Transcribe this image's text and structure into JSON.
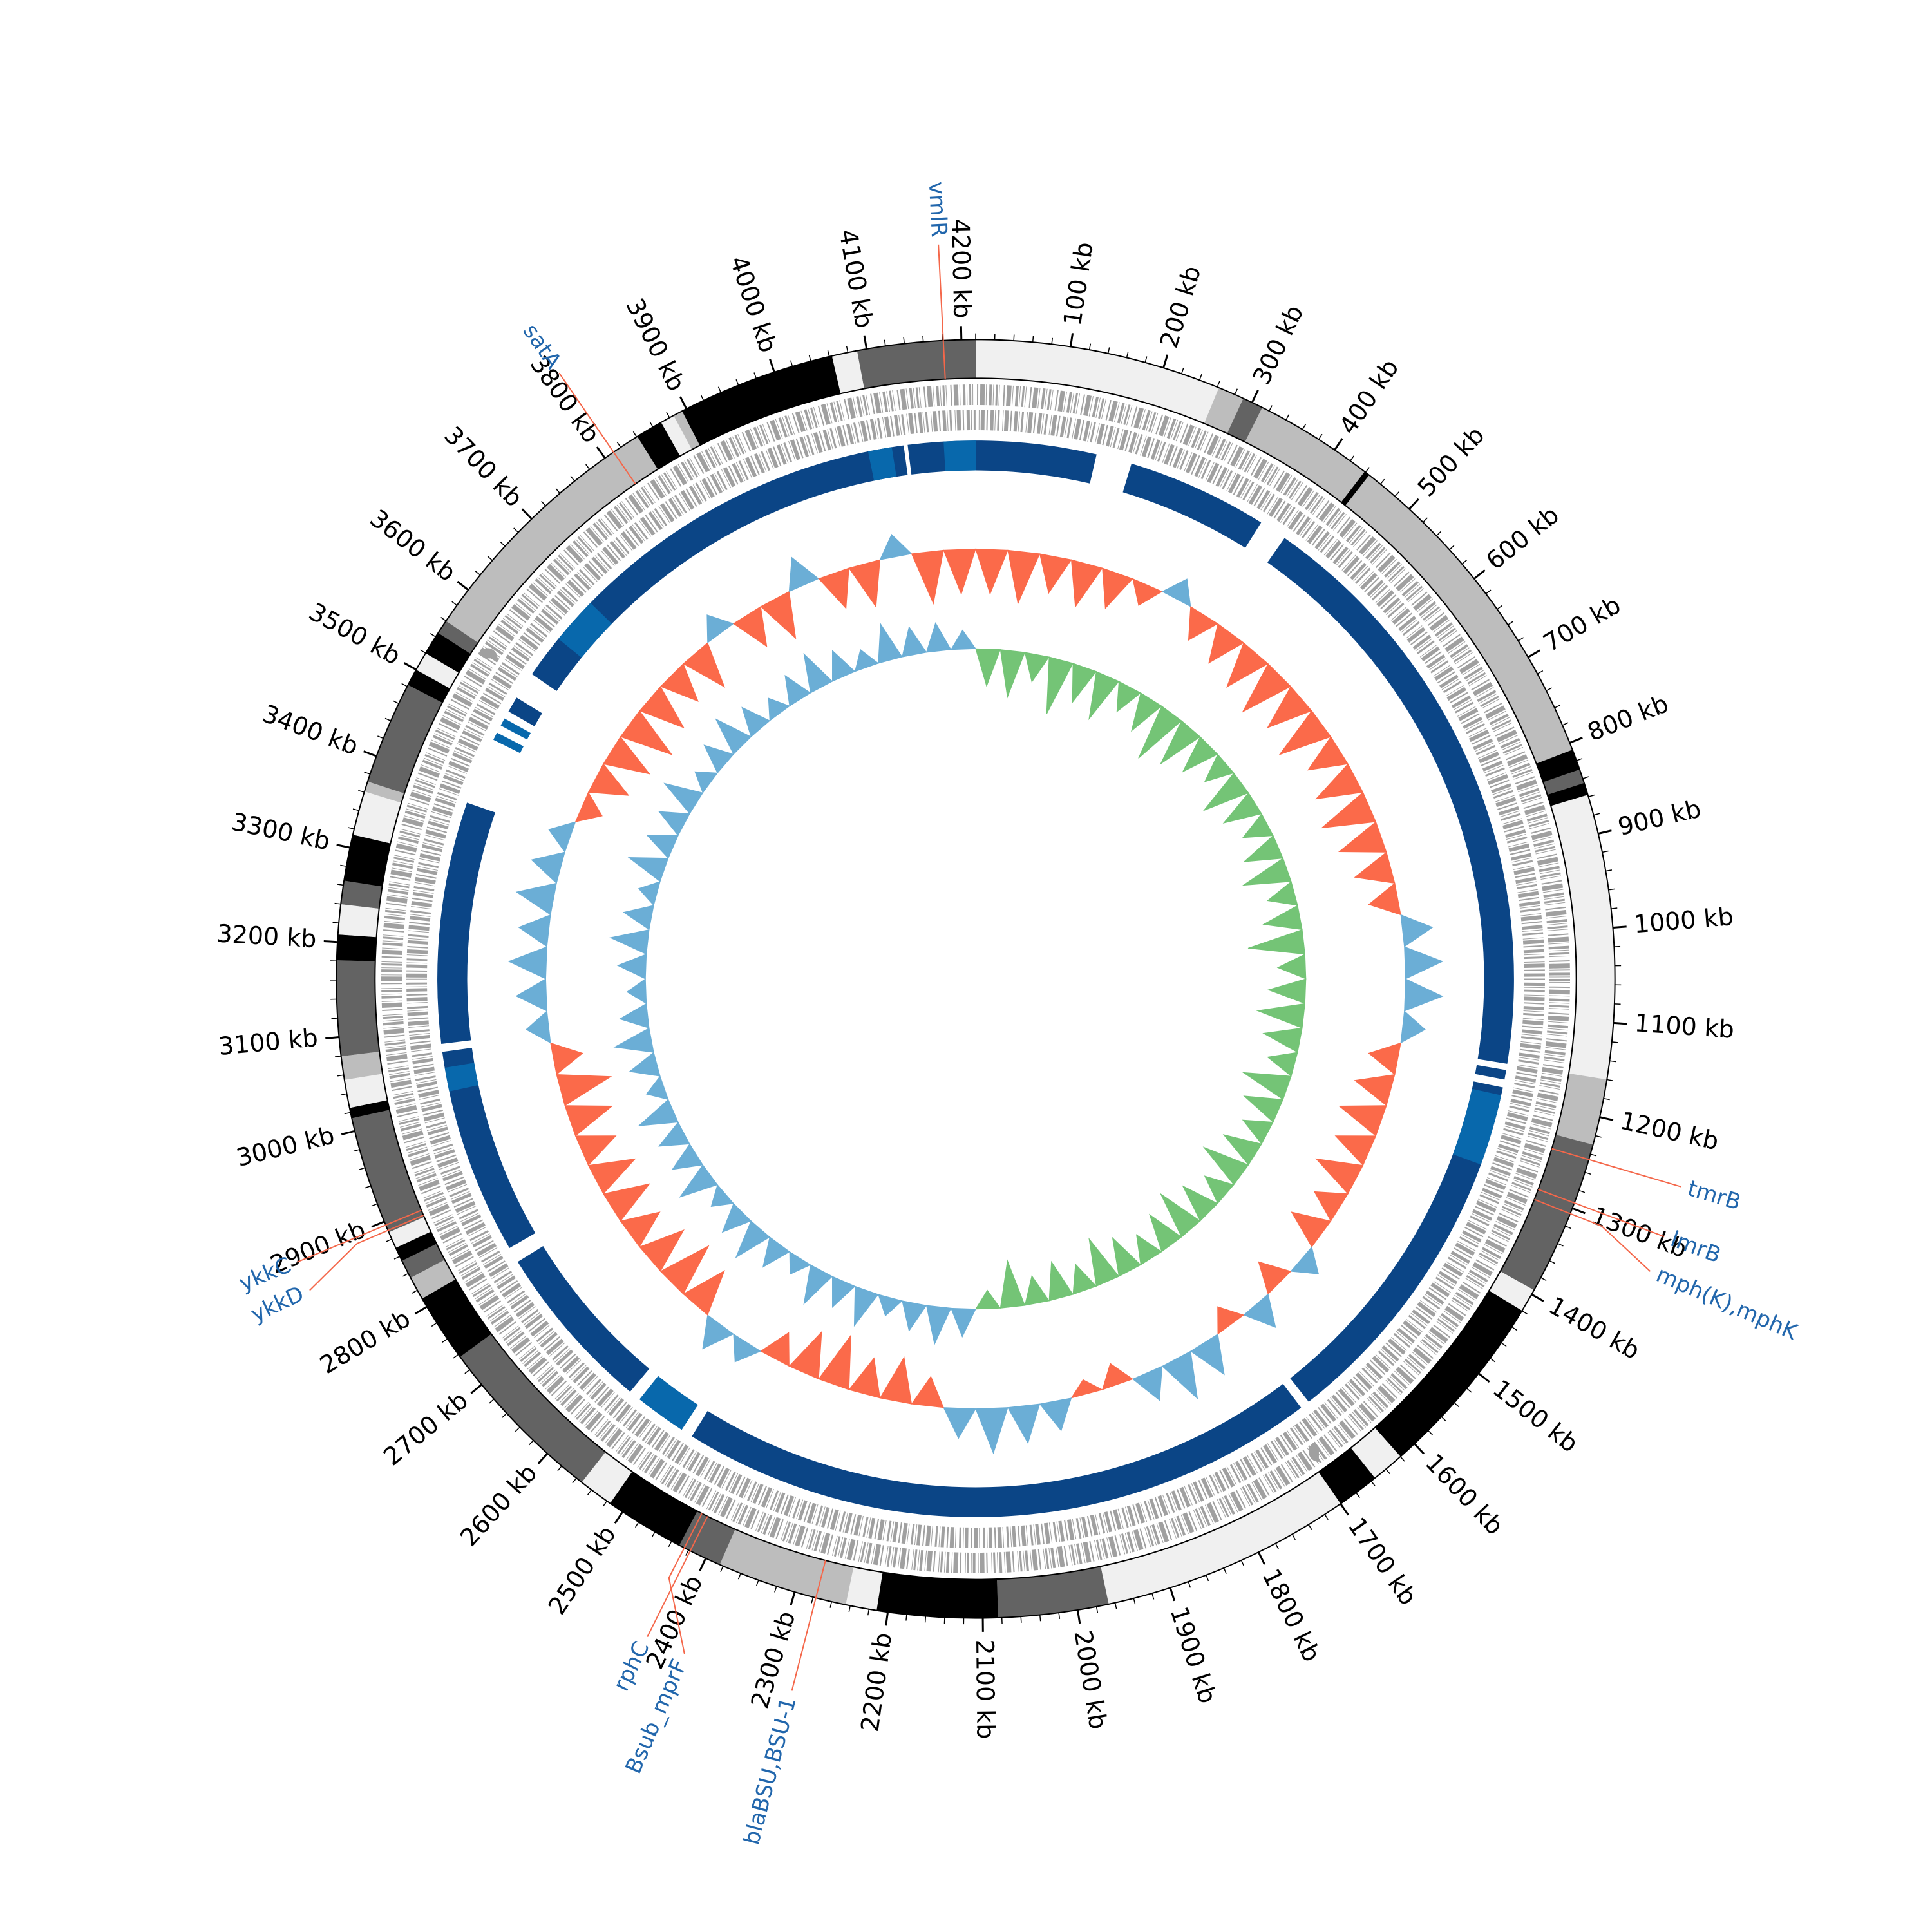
{
  "chart_data": {
    "type": "circos",
    "xlim": [
      0,
      4215
    ],
    "xticks": [
      {
        "value": 100,
        "label": "100 kb"
      },
      {
        "value": 200,
        "label": "200 kb"
      },
      {
        "value": 300,
        "label": "300 kb"
      },
      {
        "value": 400,
        "label": "400 kb"
      },
      {
        "value": 500,
        "label": "500 kb"
      },
      {
        "value": 600,
        "label": "600 kb"
      },
      {
        "value": 700,
        "label": "700 kb"
      },
      {
        "value": 800,
        "label": "800 kb"
      },
      {
        "value": 900,
        "label": "900 kb"
      },
      {
        "value": 1000,
        "label": "1000 kb"
      },
      {
        "value": 1100,
        "label": "1100 kb"
      },
      {
        "value": 1200,
        "label": "1200 kb"
      },
      {
        "value": 1300,
        "label": "1300 kb"
      },
      {
        "value": 1400,
        "label": "1400 kb"
      },
      {
        "value": 1500,
        "label": "1500 kb"
      },
      {
        "value": 1600,
        "label": "1600 kb"
      },
      {
        "value": 1700,
        "label": "1700 kb"
      },
      {
        "value": 1800,
        "label": "1800 kb"
      },
      {
        "value": 1900,
        "label": "1900 kb"
      },
      {
        "value": 2000,
        "label": "2000 kb"
      },
      {
        "value": 2100,
        "label": "2100 kb"
      },
      {
        "value": 2200,
        "label": "2200 kb"
      },
      {
        "value": 2300,
        "label": "2300 kb"
      },
      {
        "value": 2400,
        "label": "2400 kb"
      },
      {
        "value": 2500,
        "label": "2500 kb"
      },
      {
        "value": 2600,
        "label": "2600 kb"
      },
      {
        "value": 2700,
        "label": "2700 kb"
      },
      {
        "value": 2800,
        "label": "2800 kb"
      },
      {
        "value": 2900,
        "label": "2900 kb"
      },
      {
        "value": 3000,
        "label": "3000 kb"
      },
      {
        "value": 3100,
        "label": "3100 kb"
      },
      {
        "value": 3200,
        "label": "3200 kb"
      },
      {
        "value": 3300,
        "label": "3300 kb"
      },
      {
        "value": 3400,
        "label": "3400 kb"
      },
      {
        "value": 3500,
        "label": "3500 kb"
      },
      {
        "value": 3600,
        "label": "3600 kb"
      },
      {
        "value": 3700,
        "label": "3700 kb"
      },
      {
        "value": 3800,
        "label": "3800 kb"
      },
      {
        "value": 3900,
        "label": "3900 kb"
      },
      {
        "value": 4000,
        "label": "4000 kb"
      },
      {
        "value": 4100,
        "label": "4100 kb"
      },
      {
        "value": 4200,
        "label": "4200 kb"
      }
    ],
    "contigs": [
      {
        "start": 0,
        "end": 262,
        "color": "#f0f0f0"
      },
      {
        "start": 262,
        "end": 290,
        "color": "#bdbdbd"
      },
      {
        "start": 290,
        "end": 312,
        "color": "#636363"
      },
      {
        "start": 312,
        "end": 439,
        "color": "#bdbdbd"
      },
      {
        "start": 439,
        "end": 445,
        "color": "#000000"
      },
      {
        "start": 445,
        "end": 808,
        "color": "#bdbdbd"
      },
      {
        "start": 808,
        "end": 830,
        "color": "#000000"
      },
      {
        "start": 830,
        "end": 845,
        "color": "#636363"
      },
      {
        "start": 845,
        "end": 858,
        "color": "#000000"
      },
      {
        "start": 858,
        "end": 1160,
        "color": "#f0f0f0"
      },
      {
        "start": 1160,
        "end": 1230,
        "color": "#bdbdbd"
      },
      {
        "start": 1230,
        "end": 1395,
        "color": "#636363"
      },
      {
        "start": 1395,
        "end": 1420,
        "color": "#f0f0f0"
      },
      {
        "start": 1420,
        "end": 1620,
        "color": "#000000"
      },
      {
        "start": 1620,
        "end": 1655,
        "color": "#f0f0f0"
      },
      {
        "start": 1655,
        "end": 1700,
        "color": "#000000"
      },
      {
        "start": 1700,
        "end": 1967,
        "color": "#f0f0f0"
      },
      {
        "start": 1967,
        "end": 2084,
        "color": "#636363"
      },
      {
        "start": 2084,
        "end": 2212,
        "color": "#000000"
      },
      {
        "start": 2212,
        "end": 2245,
        "color": "#f0f0f0"
      },
      {
        "start": 2245,
        "end": 2384,
        "color": "#bdbdbd"
      },
      {
        "start": 2384,
        "end": 2431,
        "color": "#636363"
      },
      {
        "start": 2431,
        "end": 2516,
        "color": "#000000"
      },
      {
        "start": 2516,
        "end": 2553,
        "color": "#f0f0f0"
      },
      {
        "start": 2553,
        "end": 2737,
        "color": "#636363"
      },
      {
        "start": 2737,
        "end": 2810,
        "color": "#000000"
      },
      {
        "start": 2810,
        "end": 2835,
        "color": "#bdbdbd"
      },
      {
        "start": 2835,
        "end": 2855,
        "color": "#636363"
      },
      {
        "start": 2855,
        "end": 2870,
        "color": "#000000"
      },
      {
        "start": 2870,
        "end": 2888,
        "color": "#f0f0f0"
      },
      {
        "start": 2888,
        "end": 3014,
        "color": "#636363"
      },
      {
        "start": 3014,
        "end": 3025,
        "color": "#000000"
      },
      {
        "start": 3025,
        "end": 3055,
        "color": "#f0f0f0"
      },
      {
        "start": 3055,
        "end": 3080,
        "color": "#bdbdbd"
      },
      {
        "start": 3080,
        "end": 3181,
        "color": "#636363"
      },
      {
        "start": 3181,
        "end": 3208,
        "color": "#000000"
      },
      {
        "start": 3208,
        "end": 3240,
        "color": "#f0f0f0"
      },
      {
        "start": 3240,
        "end": 3265,
        "color": "#636363"
      },
      {
        "start": 3265,
        "end": 3314,
        "color": "#000000"
      },
      {
        "start": 3314,
        "end": 3361,
        "color": "#f0f0f0"
      },
      {
        "start": 3361,
        "end": 3372,
        "color": "#bdbdbd"
      },
      {
        "start": 3372,
        "end": 3482,
        "color": "#636363"
      },
      {
        "start": 3482,
        "end": 3500,
        "color": "#000000"
      },
      {
        "start": 3500,
        "end": 3520,
        "color": "#f0f0f0"
      },
      {
        "start": 3520,
        "end": 3545,
        "color": "#000000"
      },
      {
        "start": 3545,
        "end": 3560,
        "color": "#636363"
      },
      {
        "start": 3560,
        "end": 3841,
        "color": "#bdbdbd"
      },
      {
        "start": 3841,
        "end": 3870,
        "color": "#000000"
      },
      {
        "start": 3870,
        "end": 3885,
        "color": "#f0f0f0"
      },
      {
        "start": 3885,
        "end": 3895,
        "color": "#bdbdbd"
      },
      {
        "start": 3895,
        "end": 4063,
        "color": "#000000"
      },
      {
        "start": 4063,
        "end": 4090,
        "color": "#f0f0f0"
      },
      {
        "start": 4090,
        "end": 4215,
        "color": "#636363"
      }
    ],
    "hits": [
      {
        "start": 4130,
        "end": 4215,
        "color": "#0b4586"
      },
      {
        "start": 0,
        "end": 152,
        "color": "#0b4586"
      },
      {
        "start": 197,
        "end": 375,
        "color": "#0b4586"
      },
      {
        "start": 410,
        "end": 1160,
        "color": "#0b4586"
      },
      {
        "start": 1168,
        "end": 1180,
        "color": "#0b4586"
      },
      {
        "start": 1190,
        "end": 1660,
        "color": "#0b4586"
      },
      {
        "start": 1672,
        "end": 2480,
        "color": "#0b4586"
      },
      {
        "start": 2495,
        "end": 2560,
        "color": "#0868ac"
      },
      {
        "start": 2575,
        "end": 2790,
        "color": "#0b4586"
      },
      {
        "start": 2810,
        "end": 3070,
        "color": "#0b4586"
      },
      {
        "start": 3080,
        "end": 3385,
        "color": "#0b4586"
      },
      {
        "start": 3470,
        "end": 3480,
        "color": "#0868ac"
      },
      {
        "start": 3490,
        "end": 3500,
        "color": "#0868ac"
      },
      {
        "start": 3510,
        "end": 3530,
        "color": "#0b4586"
      },
      {
        "start": 3565,
        "end": 4125,
        "color": "#0b4586"
      },
      {
        "start": 1200,
        "end": 1290,
        "color": "#0868ac"
      },
      {
        "start": 3620,
        "end": 3680,
        "color": "#0868ac"
      },
      {
        "start": 4080,
        "end": 4110,
        "color": "#0868ac"
      },
      {
        "start": 3020,
        "end": 3050,
        "color": "#0868ac"
      },
      {
        "start": 4175,
        "end": 4215,
        "color": "#0868ac"
      }
    ],
    "gc_content": {
      "ylim": [
        -10,
        10
      ],
      "positive_color": "#6baed6",
      "negative_color": "#fb6a4a",
      "values": [
        -6,
        -7,
        -5,
        -6,
        -5,
        -3,
        3,
        -4,
        -5,
        -6,
        -7,
        -6,
        -7,
        -5,
        -6,
        -7,
        -6,
        -5,
        -4,
        4,
        5,
        5,
        3,
        -4,
        -5,
        -6,
        -5,
        -6,
        -4,
        -5,
        3,
        -4,
        4,
        -3,
        5,
        6,
        4,
        -3,
        -2,
        4,
        5,
        6,
        4,
        -4,
        -6,
        -5,
        -7,
        -6,
        -4,
        3,
        4,
        -6,
        -7,
        -6,
        -5,
        -6,
        -6,
        -5,
        -6,
        -7,
        -4,
        3,
        4,
        5,
        4,
        5,
        4,
        3,
        -3,
        -5,
        -6,
        -7,
        -6,
        -5,
        -6,
        3,
        -5,
        -6,
        4,
        -5,
        -6,
        3,
        -7,
        -6
      ]
    },
    "gc_skew": {
      "ylim": [
        -0.1,
        0.1
      ],
      "positive_color": "#74c476",
      "negative_color": "#6baed6",
      "values": [
        0.04,
        0.05,
        0.03,
        0.06,
        0.04,
        0.05,
        0.03,
        0.04,
        0.06,
        0.05,
        0.04,
        0.03,
        0.05,
        0.04,
        0.03,
        0.04,
        0.05,
        0.03,
        0.04,
        0.06,
        0.03,
        0.04,
        0.05,
        0.04,
        0.03,
        0.05,
        0.04,
        0.03,
        0.04,
        0.05,
        0.03,
        0.04,
        0.05,
        0.04,
        0.03,
        0.04,
        0.05,
        0.03,
        0.04,
        0.03,
        0.05,
        0.02,
        -0.03,
        -0.04,
        -0.03,
        -0.02,
        -0.04,
        -0.03,
        -0.04,
        -0.02,
        -0.03,
        -0.04,
        -0.03,
        -0.02,
        -0.04,
        -0.03,
        -0.03,
        -0.04,
        -0.02,
        -0.03,
        -0.04,
        -0.03,
        -0.02,
        -0.03,
        -0.04,
        -0.03,
        -0.02,
        -0.04,
        -0.03,
        -0.03,
        -0.04,
        -0.02,
        -0.03,
        -0.04,
        -0.03,
        -0.02,
        -0.03,
        -0.04,
        -0.03,
        -0.02,
        -0.04,
        -0.03,
        -0.03,
        -0.02
      ]
    },
    "gene_label_color": "#2166ac",
    "gene_line_color": "#f4674a",
    "genes": [
      {
        "name": "vmlR",
        "position": 4181
      },
      {
        "name": "satA",
        "position": 3811
      },
      {
        "name": "tmrB",
        "position": 1246
      },
      {
        "name": "lmrB",
        "position": 1294
      },
      {
        "name": "mph(K),mphK",
        "position": 1306
      },
      {
        "name": "ykkC",
        "position": 2896
      },
      {
        "name": "ykkD",
        "position": 2890
      },
      {
        "name": "rphC",
        "position": 2418
      },
      {
        "name": "Bsub_mprF",
        "position": 2425
      },
      {
        "name": "blaBSU,BSU-1",
        "position": 2277
      }
    ]
  }
}
